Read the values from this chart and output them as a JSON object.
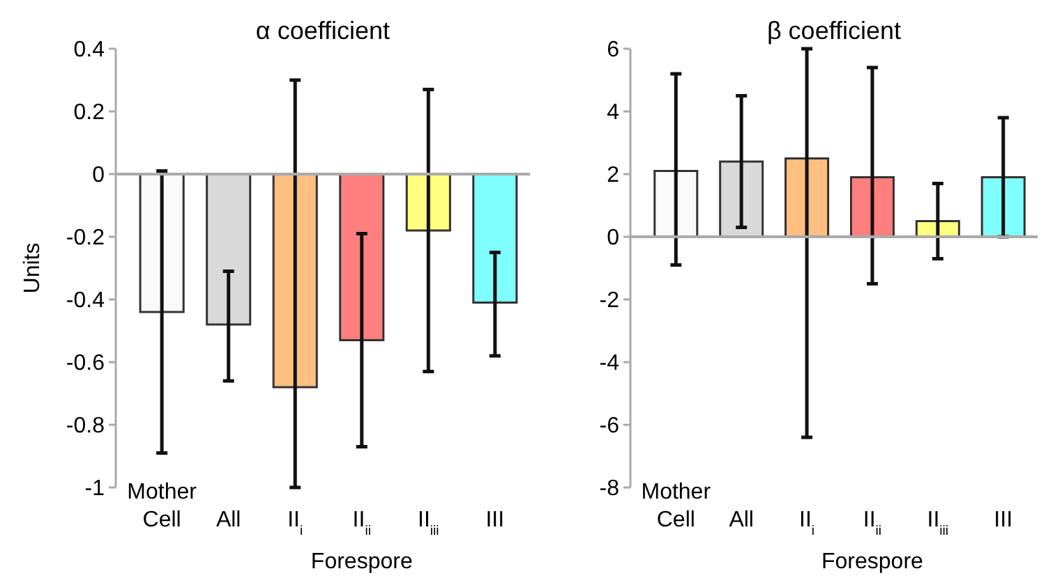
{
  "chart_data": [
    {
      "type": "bar",
      "title": "α coefficient",
      "xlabel": "Forespore",
      "ylabel": "Units",
      "categories": [
        "Mother Cell",
        "All",
        "II$_{i}$",
        "II$_{ii}$",
        "II$_{iii}$",
        "III"
      ],
      "values": [
        -0.44,
        -0.48,
        -0.68,
        -0.53,
        -0.18,
        -0.41
      ],
      "colors": [
        "#fafafa",
        "#d9d9d9",
        "#ffbf80",
        "#ff7f7f",
        "#ffff80",
        "#80ffff"
      ],
      "errors": [
        [
          -0.89,
          0.01
        ],
        [
          -0.66,
          -0.31
        ],
        [
          -1.0,
          0.3
        ],
        [
          -0.87,
          -0.19
        ],
        [
          -0.63,
          0.27
        ],
        [
          -0.58,
          -0.25
        ]
      ],
      "ylim": [
        -1,
        0.4
      ],
      "yticks": [
        -1,
        -0.8,
        -0.6,
        -0.4,
        -0.2,
        0,
        0.2,
        0.4
      ]
    },
    {
      "type": "bar",
      "title": "β coefficient",
      "xlabel": "Forespore",
      "categories": [
        "Mother Cell",
        "All",
        "II$_{i}$",
        "II$_{ii}$",
        "II$_{iii}$",
        "III"
      ],
      "values": [
        2.1,
        2.4,
        2.5,
        1.9,
        0.5,
        1.9
      ],
      "colors": [
        "#fafafa",
        "#d9d9d9",
        "#ffbf80",
        "#ff7f7f",
        "#ffff80",
        "#80ffff"
      ],
      "errors": [
        [
          -0.9,
          5.2
        ],
        [
          0.3,
          4.5
        ],
        [
          -6.4,
          6.0
        ],
        [
          -1.5,
          5.4
        ],
        [
          -0.7,
          1.7
        ],
        [
          0.0,
          3.8
        ]
      ],
      "ylim": [
        -8,
        6
      ],
      "yticks": [
        -8,
        -6,
        -4,
        -2,
        0,
        2,
        4,
        6
      ]
    }
  ]
}
